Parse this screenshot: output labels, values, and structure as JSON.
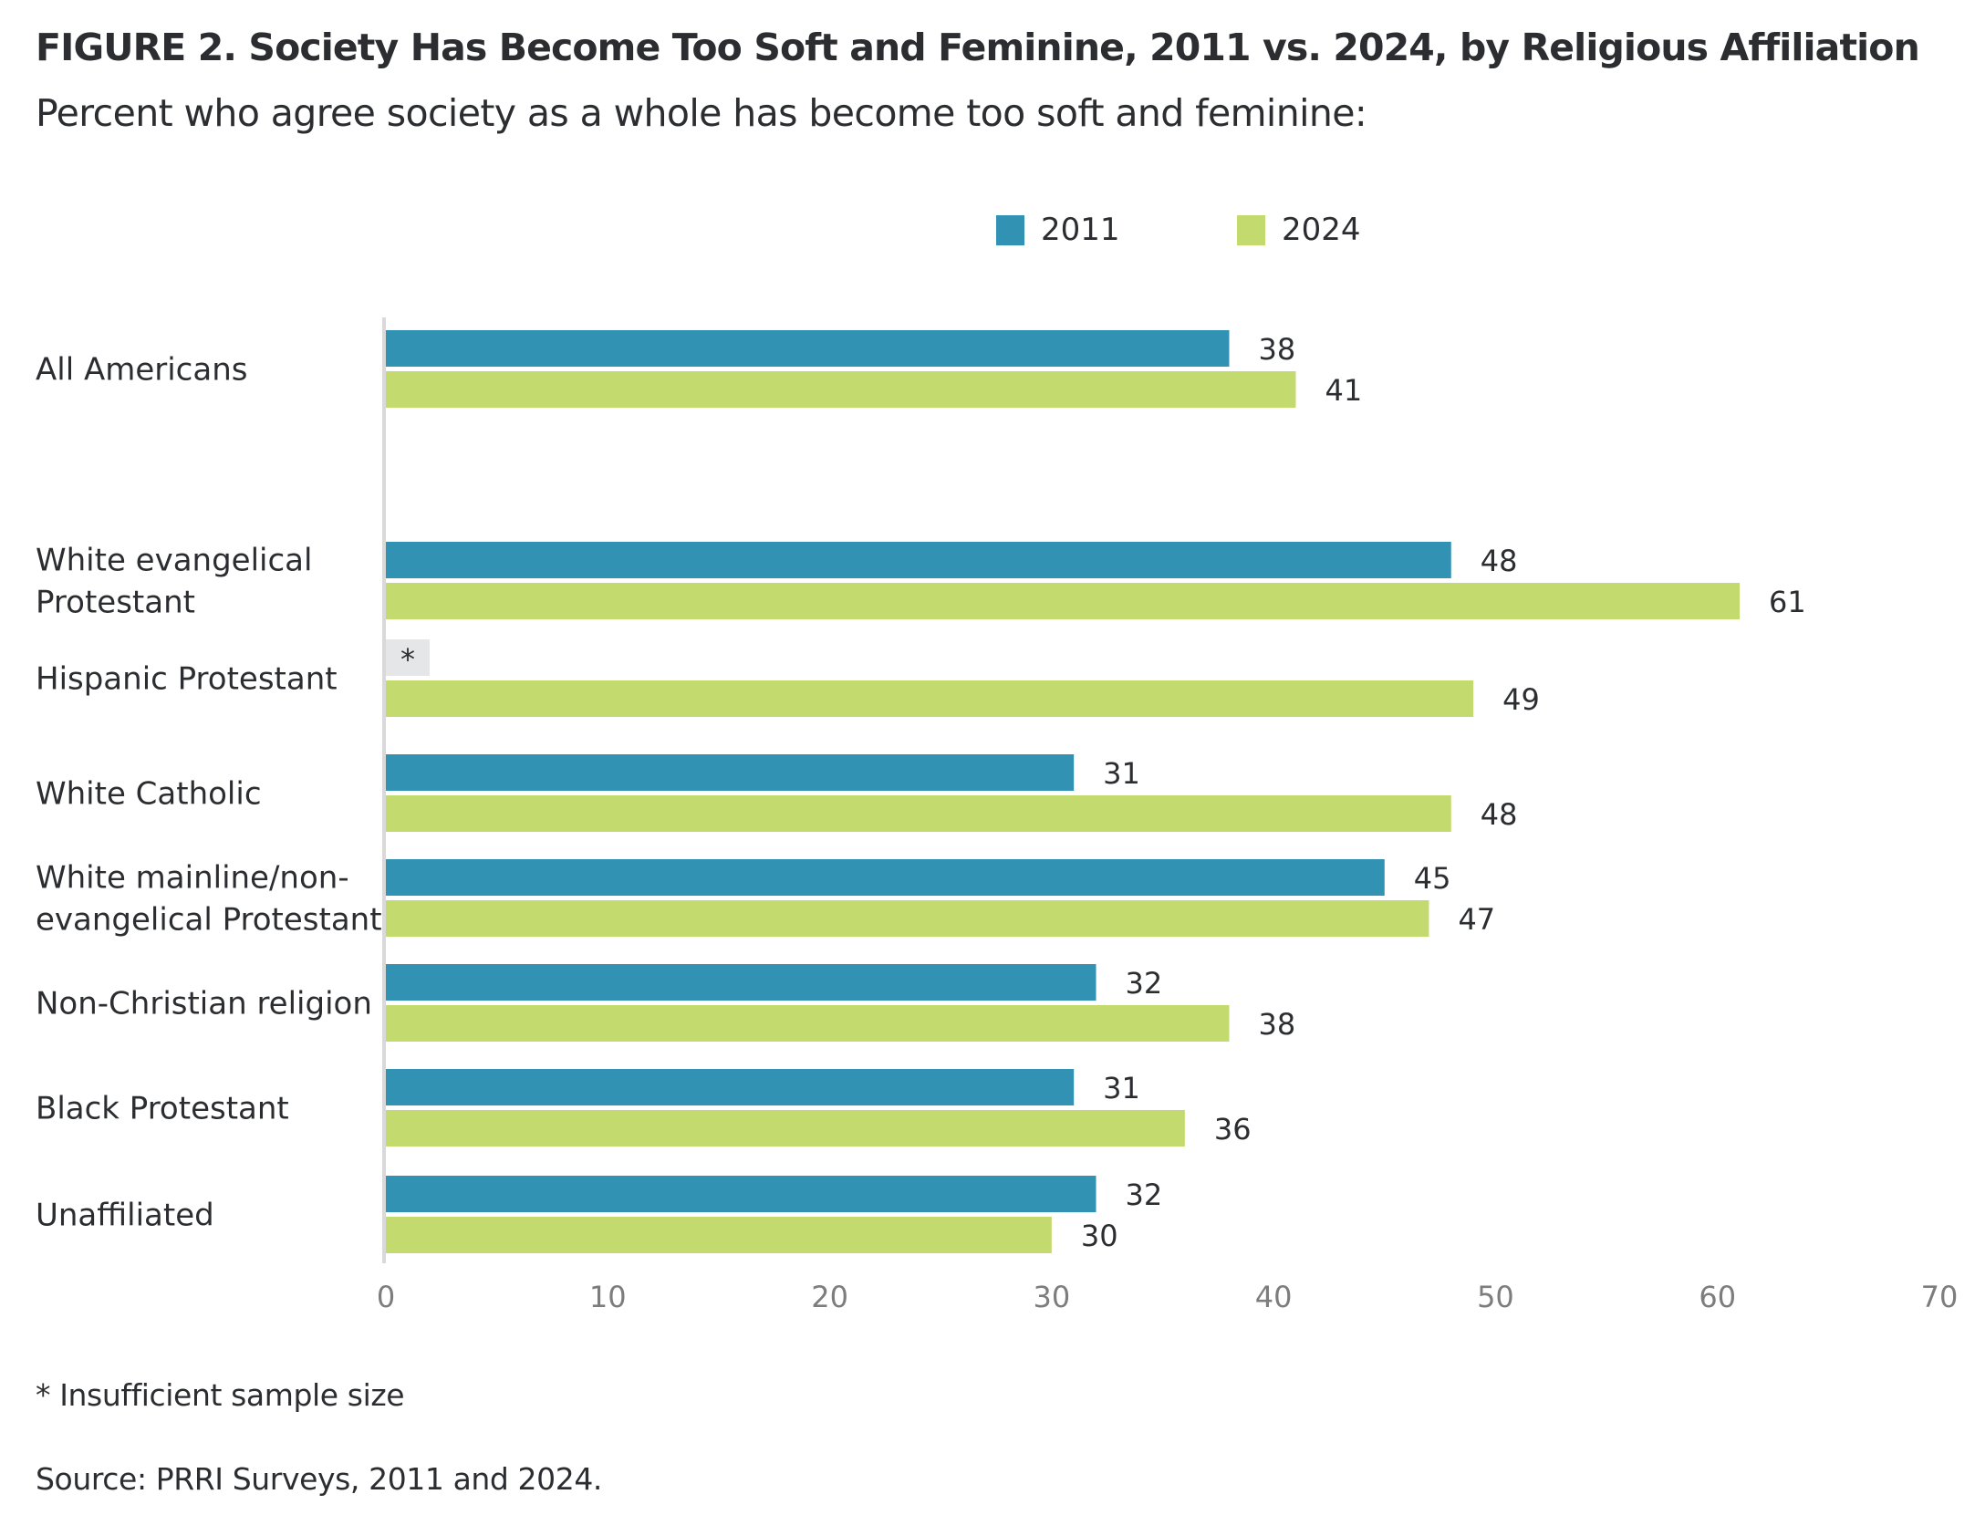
{
  "chart_data": {
    "type": "bar",
    "orientation": "horizontal",
    "title": "FIGURE 2.  Society Has Become Too Soft and Feminine, 2011 vs. 2024, by Religious Affiliation",
    "subtitle": "Percent who agree society as a whole has become too soft and feminine:",
    "xlabel": "",
    "ylabel": "",
    "xlim": [
      0,
      70
    ],
    "xticks": [
      0,
      10,
      20,
      30,
      40,
      50,
      60,
      70
    ],
    "grid": false,
    "legend_position": "top-center",
    "categories": [
      "All Americans",
      "White evangelical Protestant",
      "Hispanic Protestant",
      "White Catholic",
      "White mainline/non-evangelical Protestant",
      "Non-Christian religion",
      "Black Protestant",
      "Unaffiliated"
    ],
    "category_label_lines": [
      [
        "All Americans"
      ],
      [
        "White evangelical",
        "Protestant"
      ],
      [
        "Hispanic Protestant"
      ],
      [
        "White Catholic"
      ],
      [
        "White mainline/non-",
        "evangelical Protestant"
      ],
      [
        "Non-Christian religion"
      ],
      [
        "Black Protestant"
      ],
      [
        "Unaffiliated"
      ]
    ],
    "series": [
      {
        "name": "2011",
        "color": "#3192b3",
        "values": [
          38,
          48,
          null,
          31,
          45,
          32,
          31,
          32
        ],
        "labels": [
          "38",
          "48",
          "*",
          "31",
          "45",
          "32",
          "31",
          "32"
        ]
      },
      {
        "name": "2024",
        "color": "#c3da6e",
        "values": [
          41,
          61,
          49,
          48,
          47,
          38,
          36,
          30
        ],
        "labels": [
          "41",
          "61",
          "49",
          "48",
          "47",
          "38",
          "36",
          "30"
        ]
      }
    ],
    "insufficient_marker": "*",
    "insufficient_color": "#e5e6e7",
    "axis_color": "#d9d9d9"
  },
  "legend": {
    "items": [
      {
        "label": "2011",
        "color": "#3192b3"
      },
      {
        "label": "2024",
        "color": "#c3da6e"
      }
    ]
  },
  "footnotes": {
    "note": "* Insufficient sample size",
    "source": "Source: PRRI Surveys, 2011 and 2024."
  }
}
